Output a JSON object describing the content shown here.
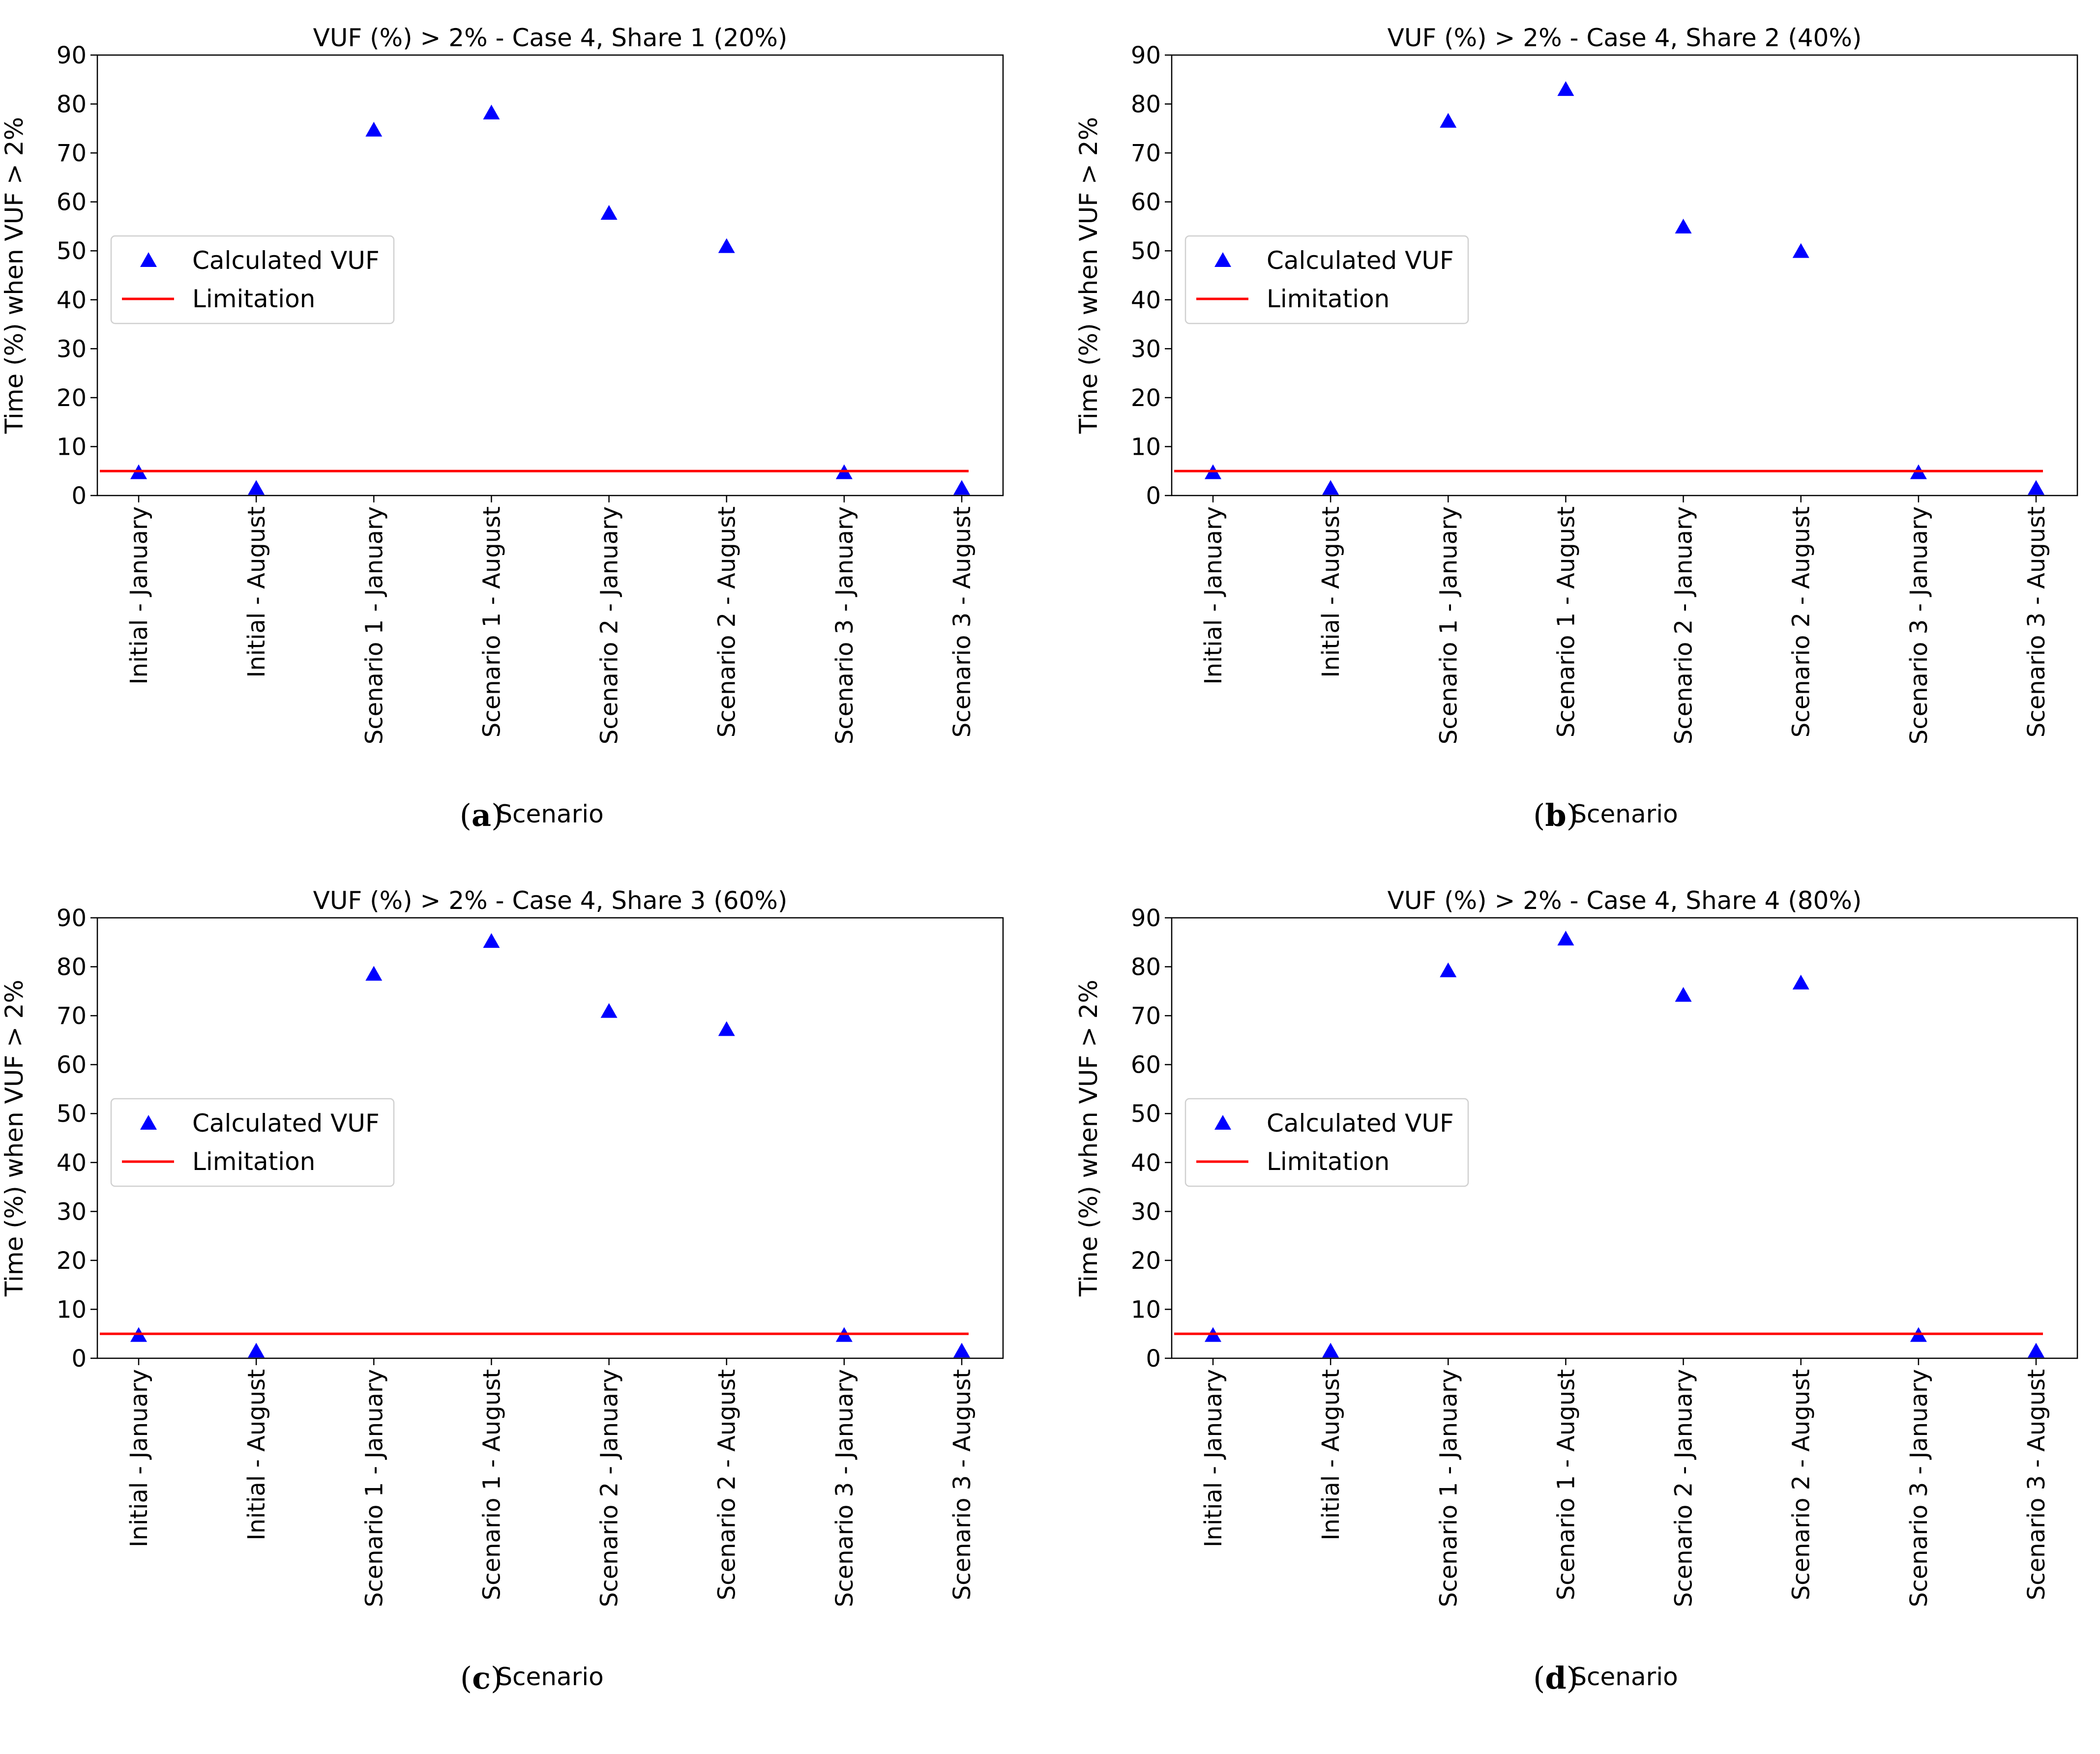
{
  "chart_data": [
    {
      "type": "scatter",
      "title": "VUF (%) > 2% - Case 4, Share 1 (20%)",
      "xlabel": "Scenario",
      "ylabel": "Time (%) when VUF > 2%",
      "ylim": [
        0,
        90
      ],
      "yticks": [
        0,
        10,
        20,
        30,
        40,
        50,
        60,
        70,
        80,
        90
      ],
      "categories": [
        "Initial - January",
        "Initial - August",
        "Scenario 1 - January",
        "Scenario 1 - August",
        "Scenario 2 - January",
        "Scenario 2 - August",
        "Scenario 3 - January",
        "Scenario 3 - August"
      ],
      "series": [
        {
          "name": "Calculated VUF",
          "marker": "triangle",
          "color": "#0000ff",
          "values": [
            4.5,
            1.3,
            74.5,
            78,
            57.5,
            50.7,
            4.5,
            1.3
          ]
        },
        {
          "name": "Limitation",
          "kind": "line",
          "color": "#ff0000",
          "values": [
            5,
            5,
            5,
            5,
            5,
            5,
            5,
            5
          ]
        }
      ],
      "legend": {
        "position": "center-left",
        "entries": [
          "Calculated VUF",
          "Limitation"
        ]
      },
      "caption_letter": "a"
    },
    {
      "type": "scatter",
      "title": "VUF (%) > 2% - Case 4, Share 2 (40%)",
      "xlabel": "Scenario",
      "ylabel": "Time (%) when VUF > 2%",
      "ylim": [
        0,
        90
      ],
      "yticks": [
        0,
        10,
        20,
        30,
        40,
        50,
        60,
        70,
        80,
        90
      ],
      "categories": [
        "Initial - January",
        "Initial - August",
        "Scenario 1 - January",
        "Scenario 1 - August",
        "Scenario 2 - January",
        "Scenario 2 - August",
        "Scenario 3 - January",
        "Scenario 3 - August"
      ],
      "series": [
        {
          "name": "Calculated VUF",
          "marker": "triangle",
          "color": "#0000ff",
          "values": [
            4.5,
            1.3,
            76.3,
            82.8,
            54.7,
            49.7,
            4.5,
            1.3
          ]
        },
        {
          "name": "Limitation",
          "kind": "line",
          "color": "#ff0000",
          "values": [
            5,
            5,
            5,
            5,
            5,
            5,
            5,
            5
          ]
        }
      ],
      "legend": {
        "position": "center-left",
        "entries": [
          "Calculated VUF",
          "Limitation"
        ]
      },
      "caption_letter": "b"
    },
    {
      "type": "scatter",
      "title": "VUF (%) > 2% - Case 4, Share 3 (60%)",
      "xlabel": "Scenario",
      "ylabel": "Time (%) when VUF > 2%",
      "ylim": [
        0,
        90
      ],
      "yticks": [
        0,
        10,
        20,
        30,
        40,
        50,
        60,
        70,
        80,
        90
      ],
      "categories": [
        "Initial - January",
        "Initial - August",
        "Scenario 1 - January",
        "Scenario 1 - August",
        "Scenario 2 - January",
        "Scenario 2 - August",
        "Scenario 3 - January",
        "Scenario 3 - August"
      ],
      "series": [
        {
          "name": "Calculated VUF",
          "marker": "triangle",
          "color": "#0000ff",
          "values": [
            4.5,
            1.3,
            78.3,
            85,
            70.7,
            67,
            4.5,
            1.3
          ]
        },
        {
          "name": "Limitation",
          "kind": "line",
          "color": "#ff0000",
          "values": [
            5,
            5,
            5,
            5,
            5,
            5,
            5,
            5
          ]
        }
      ],
      "legend": {
        "position": "center-left",
        "entries": [
          "Calculated VUF",
          "Limitation"
        ]
      },
      "caption_letter": "c"
    },
    {
      "type": "scatter",
      "title": "VUF (%) > 2% - Case 4, Share 4 (80%)",
      "xlabel": "Scenario",
      "ylabel": "Time (%) when VUF > 2%",
      "ylim": [
        0,
        90
      ],
      "yticks": [
        0,
        10,
        20,
        30,
        40,
        50,
        60,
        70,
        80,
        90
      ],
      "categories": [
        "Initial - January",
        "Initial - August",
        "Scenario 1 - January",
        "Scenario 1 - August",
        "Scenario 2 - January",
        "Scenario 2 - August",
        "Scenario 3 - January",
        "Scenario 3 - August"
      ],
      "series": [
        {
          "name": "Calculated VUF",
          "marker": "triangle",
          "color": "#0000ff",
          "values": [
            4.5,
            1.3,
            79,
            85.5,
            74,
            76.5,
            4.5,
            1.3
          ]
        },
        {
          "name": "Limitation",
          "kind": "line",
          "color": "#ff0000",
          "values": [
            5,
            5,
            5,
            5,
            5,
            5,
            5,
            5
          ]
        }
      ],
      "legend": {
        "position": "center-left",
        "entries": [
          "Calculated VUF",
          "Limitation"
        ]
      },
      "caption_letter": "d"
    }
  ]
}
